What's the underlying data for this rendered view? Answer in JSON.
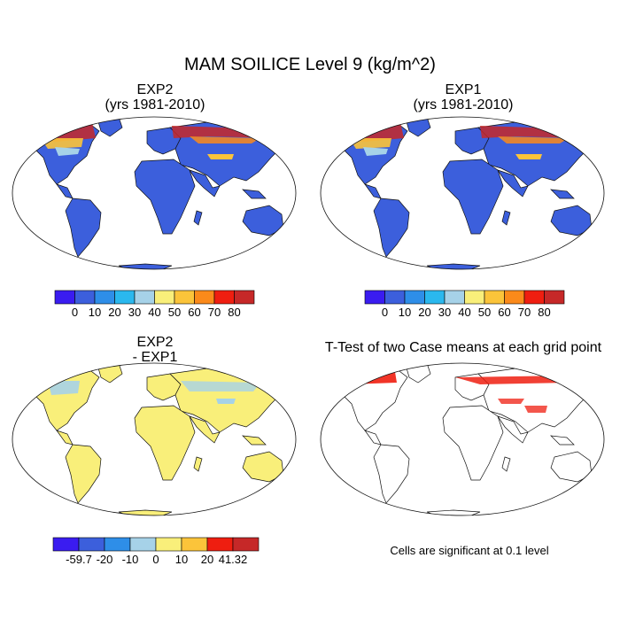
{
  "figure": {
    "title": "MAM SOILICE Level 9 (kg/m^2)"
  },
  "panels": [
    {
      "id": "exp2",
      "title_line1": "EXP2",
      "title_line2": "(yrs 1981-2010)"
    },
    {
      "id": "exp1",
      "title_line1": "EXP1",
      "title_line2": "(yrs 1981-2010)"
    },
    {
      "id": "diff",
      "title_line1": "EXP2",
      "title_line2": "- EXP1"
    },
    {
      "id": "ttest",
      "title_line1": "T-Test of two Case means at each grid point",
      "title_line2": ""
    }
  ],
  "colorbars": {
    "abs": {
      "colors": [
        "#3a1cf0",
        "#3c5fdc",
        "#2e8ee8",
        "#2ab8ee",
        "#a6d2e8",
        "#f9ef7a",
        "#fbc43a",
        "#fb8a1a",
        "#ef1e10",
        "#c62828"
      ],
      "labels": [
        "0",
        "10",
        "20",
        "30",
        "40",
        "50",
        "60",
        "70",
        "80"
      ]
    },
    "diff": {
      "colors": [
        "#3a1cf0",
        "#3c5fdc",
        "#2e8ee8",
        "#a6d2e8",
        "#f9ef7a",
        "#fbc43a",
        "#ef1e10",
        "#c62828"
      ],
      "labels": [
        "-59.7",
        "-20",
        "-10",
        "0",
        "10",
        "20",
        "41.32"
      ]
    }
  },
  "significance_note": "Cells are significant at 0.1 level",
  "colors": {
    "ocean_land_base_abs": "#3c5fdc",
    "land_base_diff": "#f9ef7a",
    "significant": "#ef1e10"
  }
}
